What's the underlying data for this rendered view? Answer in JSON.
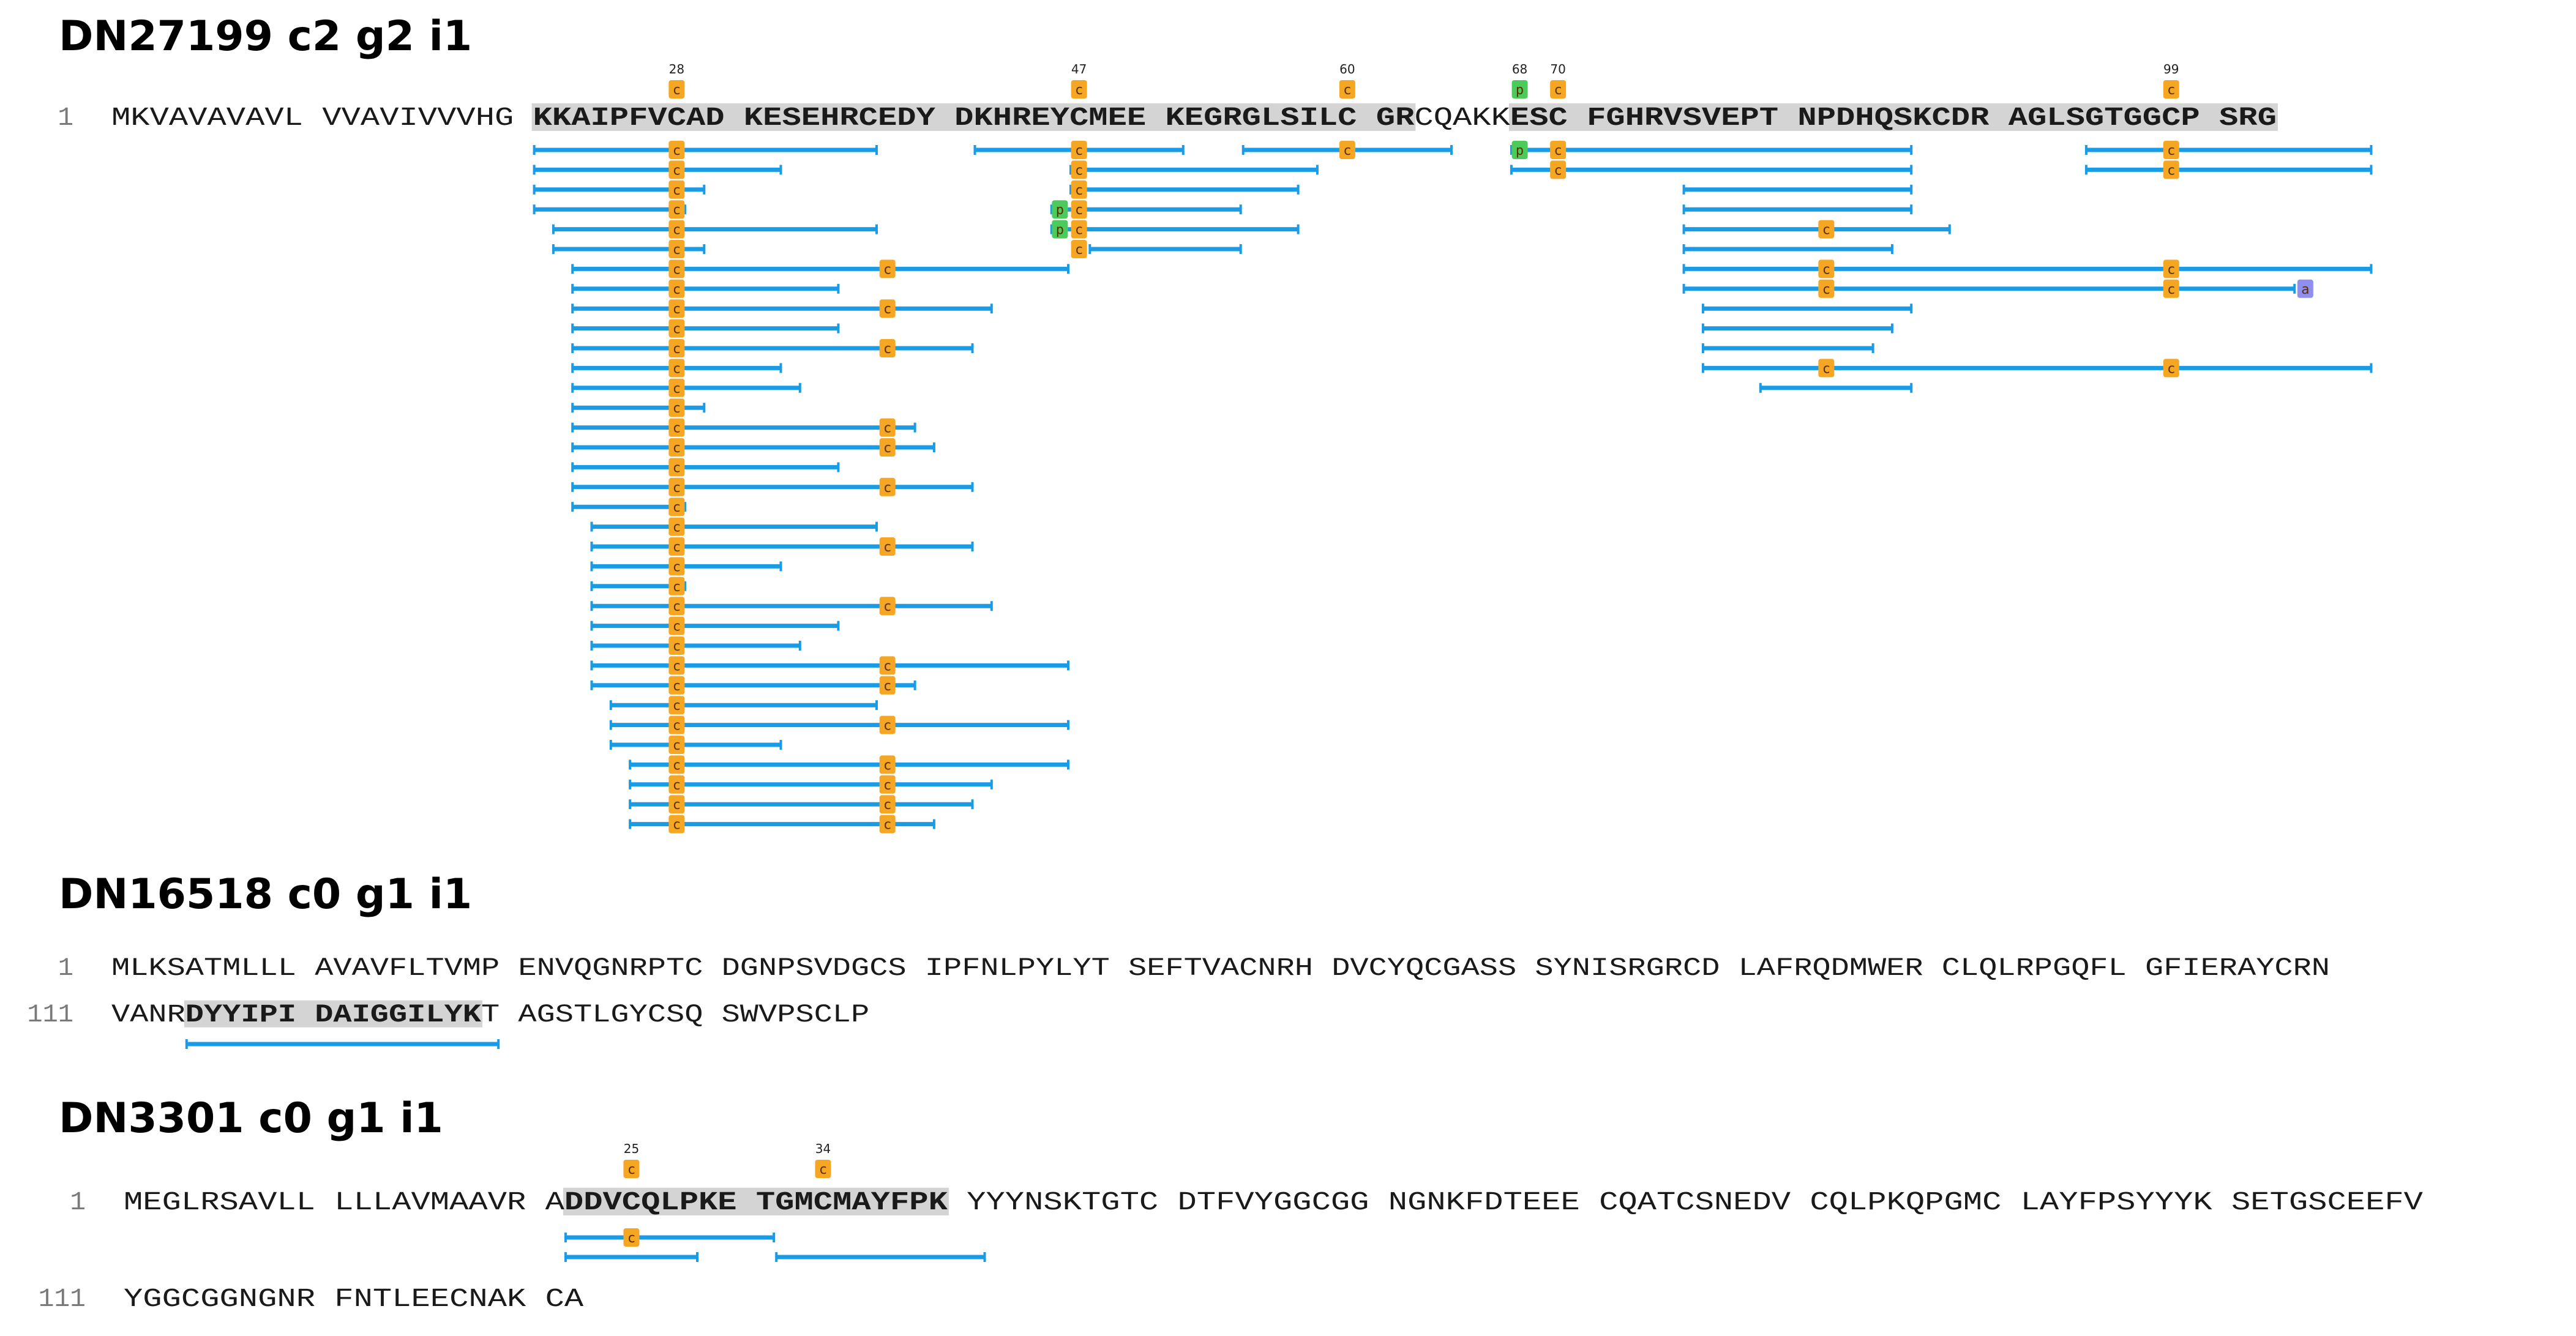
{
  "proteins": [
    {
      "title": "DN27199 c2 g2 i1",
      "lines": [
        {
          "number": "1",
          "segments": [
            {
              "text": "MKVAVAVAVL VVAVIVVVHG ",
              "hl": false
            },
            {
              "text": "KKAIPFVCAD KESEHRCEDY DKHREYCMEE KEGRGLSILC GR",
              "hl": true
            },
            {
              "text": "CQAKK",
              "hl": false
            },
            {
              "text": "ESC FGHRVSVEPT NPDHQSKCDR AGLSGTGGCP SRG",
              "hl": true
            }
          ]
        }
      ],
      "site_labels": [
        {
          "number": "28",
          "residue": "C",
          "col": 27
        },
        {
          "number": "47",
          "residue": "C",
          "col": 46
        },
        {
          "number": "60",
          "residue": "C",
          "col": 59
        },
        {
          "number": "68",
          "residue": "P",
          "col": 67
        },
        {
          "number": "70",
          "residue": "C",
          "col": 69
        },
        {
          "number": "99",
          "residue": "C",
          "col": 98
        }
      ],
      "peptides": [
        [
          20,
          36,
          [
            27
          ]
        ],
        [
          41,
          50,
          [
            46
          ]
        ],
        [
          54,
          63,
          [
            59
          ]
        ],
        [
          67,
          85,
          [
            67,
            69
          ]
        ],
        [
          94,
          107,
          [
            98
          ]
        ],
        [
          20,
          31,
          [
            27
          ]
        ],
        [
          46,
          57,
          [
            46,
            59
          ]
        ],
        [
          67,
          85,
          [
            69
          ]
        ],
        [
          94,
          107,
          [
            98
          ]
        ],
        [
          20,
          28,
          [
            27
          ]
        ],
        [
          46,
          56,
          [
            46
          ]
        ],
        [
          75,
          85,
          []
        ],
        [
          20,
          27,
          [
            27
          ]
        ],
        [
          45,
          53,
          [
            45,
            46
          ]
        ],
        [
          75,
          85,
          []
        ],
        [
          21,
          36,
          [
            27
          ]
        ],
        [
          45,
          56,
          [
            45,
            46
          ]
        ],
        [
          75,
          87,
          [
            81
          ]
        ],
        [
          21,
          28,
          [
            27
          ]
        ],
        [
          47,
          53,
          [
            46
          ]
        ],
        [
          75,
          84,
          []
        ],
        [
          22,
          45,
          [
            27,
            37
          ]
        ],
        [
          75,
          107,
          [
            81,
            98
          ]
        ],
        [
          22,
          34,
          [
            27
          ]
        ],
        [
          75,
          103,
          [
            81,
            98,
            104
          ]
        ],
        [
          22,
          41,
          [
            27,
            37
          ]
        ],
        [
          76,
          85,
          []
        ],
        [
          22,
          34,
          [
            27
          ]
        ],
        [
          76,
          84,
          []
        ],
        [
          22,
          40,
          [
            27,
            37
          ]
        ],
        [
          76,
          83,
          []
        ],
        [
          22,
          31,
          [
            27
          ]
        ],
        [
          76,
          107,
          [
            81,
            98
          ]
        ],
        [
          22,
          32,
          [
            27
          ]
        ],
        [
          79,
          85,
          []
        ],
        [
          22,
          28,
          [
            27
          ]
        ],
        [
          22,
          38,
          [
            27,
            37
          ]
        ],
        [
          22,
          39,
          [
            27,
            37
          ]
        ],
        [
          22,
          34,
          [
            27
          ]
        ],
        [
          22,
          40,
          [
            27,
            37
          ]
        ],
        [
          22,
          27,
          [
            27
          ]
        ],
        [
          23,
          36,
          [
            27
          ]
        ],
        [
          23,
          40,
          [
            27,
            37
          ]
        ],
        [
          23,
          31,
          [
            27
          ]
        ],
        [
          23,
          27,
          [
            27
          ]
        ],
        [
          23,
          41,
          [
            27,
            37
          ]
        ],
        [
          23,
          34,
          [
            27
          ]
        ],
        [
          23,
          32,
          [
            27
          ]
        ],
        [
          23,
          45,
          [
            27,
            37
          ]
        ],
        [
          23,
          38,
          [
            27,
            37
          ]
        ],
        [
          24,
          36,
          [
            27
          ]
        ],
        [
          24,
          45,
          [
            27,
            37
          ]
        ],
        [
          24,
          31,
          [
            27
          ]
        ],
        [
          25,
          45,
          [
            27,
            37
          ]
        ],
        [
          25,
          41,
          [
            27,
            37
          ]
        ],
        [
          25,
          40,
          [
            27,
            37
          ]
        ],
        [
          25,
          39,
          [
            27,
            37
          ]
        ]
      ]
    },
    {
      "title": "DN16518 c0 g1 i1",
      "lines": [
        {
          "number": "1",
          "segments": [
            {
              "text": "MLKSATMLLL AVAVFLTVMP ENVQGNRPTC DGNPSVDGCS IPFNLPYLYT SEFTVACNRH DVCYQCGASS SYNISRGRCD LAFRQDMWER CLQLRPGQFL GFIERAYCRN",
              "hl": false
            }
          ]
        },
        {
          "number": "111",
          "segments": [
            {
              "text": "VANR",
              "hl": false
            },
            {
              "text": "DYYIPI DAIGGILYK",
              "hl": true
            },
            {
              "text": "T AGSTLGYCSQ SWVPSCLP",
              "hl": false
            }
          ]
        }
      ],
      "site_labels": [],
      "peptides": [
        [
          4,
          19,
          []
        ]
      ]
    },
    {
      "title": "DN3301 c0 g1 i1",
      "lines": [
        {
          "number": "1",
          "segments": [
            {
              "text": "MEGLRSAVLL LLLAVMAAVR A",
              "hl": false
            },
            {
              "text": "DDVCQLPKE TGMCMAYFPK",
              "hl": true
            },
            {
              "text": " YYYNSKTGTC DTFVYGGCGG NGNKFDTEEE CQATCSNEDV CQLPKQPGMC LAYFPSYYYK SETGSCEEFV",
              "hl": false
            }
          ]
        },
        {
          "number": "111",
          "segments": [
            {
              "text": "YGGCGGNGNR FNTLEECNAK CA",
              "hl": false
            }
          ]
        }
      ],
      "site_labels": [
        {
          "number": "25",
          "residue": "C",
          "col": 24
        },
        {
          "number": "34",
          "residue": "C",
          "col": 33
        }
      ],
      "peptides": [
        [
          21,
          30,
          [
            24,
            33
          ]
        ],
        [
          21,
          27,
          []
        ],
        [
          31,
          40,
          []
        ]
      ]
    }
  ],
  "colors": {
    "peptide_line": "#1a9be6",
    "cys_badge": "#f5a623",
    "pro_badge": "#4ccb5c",
    "other_badge": "#8f8ff0",
    "highlight": "#d4d4d4",
    "line_number": "#7a7a7a"
  }
}
